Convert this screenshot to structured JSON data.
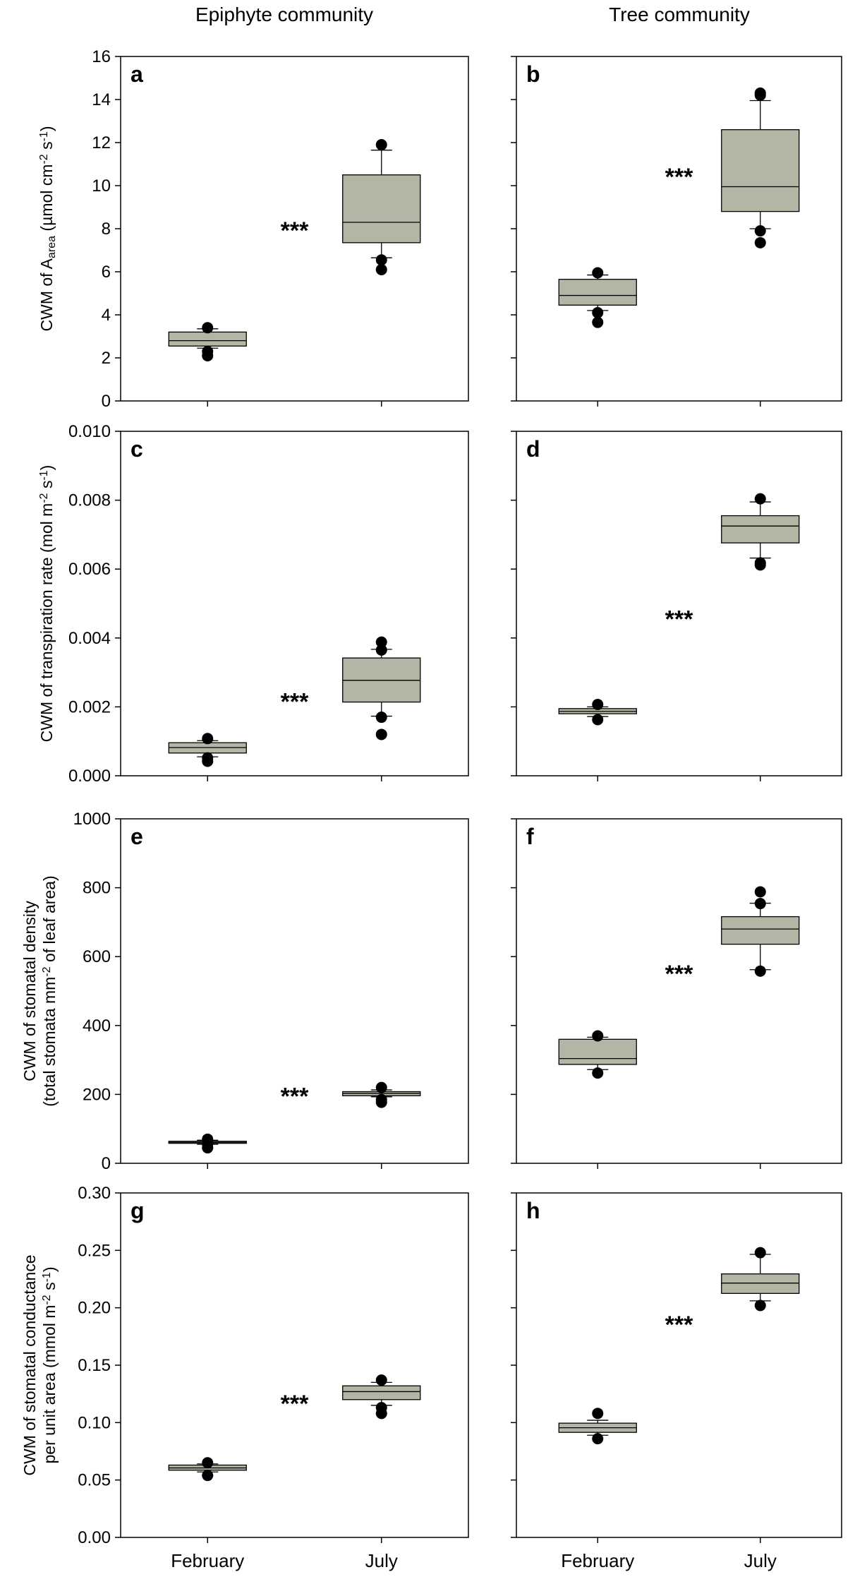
{
  "column_titles": [
    "Epiphyte community",
    "Tree community"
  ],
  "x_categories": [
    "February",
    "July"
  ],
  "colors": {
    "box_fill": "#b5b5a6",
    "stroke": "#000000",
    "outlier": "#000000"
  },
  "rows": [
    {
      "ylabel_lines": [
        [
          {
            "t": "CWM of A"
          },
          {
            "t": "area",
            "sub": true
          },
          {
            "t": " (µmol cm"
          },
          {
            "t": "-2",
            "sup": true
          },
          {
            "t": " s"
          },
          {
            "t": "-1",
            "sup": true
          },
          {
            "t": ")"
          }
        ]
      ],
      "ylim": [
        0,
        16
      ],
      "yticks": [
        "0",
        "2",
        "4",
        "6",
        "8",
        "10",
        "12",
        "14",
        "16"
      ],
      "ytick_values": [
        0,
        2,
        4,
        6,
        8,
        10,
        12,
        14,
        16
      ]
    },
    {
      "ylabel_lines": [
        [
          {
            "t": "CWM of transpiration rate (mol m"
          },
          {
            "t": "-2",
            "sup": true
          },
          {
            "t": " s"
          },
          {
            "t": "-1",
            "sup": true
          },
          {
            "t": ")"
          }
        ]
      ],
      "ylim": [
        0,
        0.01
      ],
      "yticks": [
        "0.000",
        "0.002",
        "0.004",
        "0.006",
        "0.008",
        "0.010"
      ],
      "ytick_values": [
        0,
        0.002,
        0.004,
        0.006,
        0.008,
        0.01
      ]
    },
    {
      "ylabel_lines": [
        [
          {
            "t": "CWM of stomatal density"
          }
        ],
        [
          {
            "t": "(total stomata mm"
          },
          {
            "t": "-2",
            "sup": true
          },
          {
            "t": " of leaf area)"
          }
        ]
      ],
      "ylim": [
        0,
        1000
      ],
      "yticks": [
        "0",
        "200",
        "400",
        "600",
        "800",
        "1000"
      ],
      "ytick_values": [
        0,
        200,
        400,
        600,
        800,
        1000
      ]
    },
    {
      "ylabel_lines": [
        [
          {
            "t": "CWM of stomatal conductance"
          }
        ],
        [
          {
            "t": "per unit area (mmol m"
          },
          {
            "t": "-2",
            "sup": true
          },
          {
            "t": " s"
          },
          {
            "t": "-1",
            "sup": true
          },
          {
            "t": ")"
          }
        ]
      ],
      "ylim": [
        0,
        0.3
      ],
      "yticks": [
        "0.00",
        "0.05",
        "0.10",
        "0.15",
        "0.20",
        "0.25",
        "0.30"
      ],
      "ytick_values": [
        0,
        0.05,
        0.1,
        0.15,
        0.2,
        0.25,
        0.3
      ]
    }
  ],
  "chart_data": [
    {
      "type": "box",
      "panel": "a",
      "title": "Epiphyte community",
      "categories": [
        "February",
        "July"
      ],
      "ylim": [
        0,
        16
      ],
      "significance": "***",
      "sig_at": [
        1.5,
        8.0
      ],
      "series": [
        {
          "name": "February",
          "whisker_low": 2.45,
          "q1": 2.55,
          "median": 2.8,
          "q3": 3.2,
          "whisker_high": 3.35,
          "outliers": [
            2.1,
            2.3,
            3.4
          ]
        },
        {
          "name": "July",
          "whisker_low": 6.65,
          "q1": 7.35,
          "median": 8.3,
          "q3": 10.5,
          "whisker_high": 11.65,
          "outliers": [
            6.1,
            6.55,
            11.9
          ]
        }
      ]
    },
    {
      "type": "box",
      "panel": "b",
      "title": "Tree community",
      "categories": [
        "February",
        "July"
      ],
      "ylim": [
        0,
        16
      ],
      "significance": "***",
      "sig_at": [
        1.5,
        10.5
      ],
      "series": [
        {
          "name": "February",
          "whisker_low": 4.2,
          "q1": 4.45,
          "median": 4.9,
          "q3": 5.65,
          "whisker_high": 5.85,
          "outliers": [
            3.65,
            4.1,
            5.95
          ]
        },
        {
          "name": "July",
          "whisker_low": 8.0,
          "q1": 8.8,
          "median": 9.95,
          "q3": 12.6,
          "whisker_high": 13.95,
          "outliers": [
            7.35,
            7.9,
            14.2,
            14.3
          ]
        }
      ]
    },
    {
      "type": "box",
      "panel": "c",
      "title": "Epiphyte community",
      "categories": [
        "February",
        "July"
      ],
      "ylim": [
        0,
        0.01
      ],
      "significance": "***",
      "sig_at": [
        1.5,
        0.0022
      ],
      "series": [
        {
          "name": "February",
          "whisker_low": 0.00055,
          "q1": 0.00066,
          "median": 0.00082,
          "q3": 0.00096,
          "whisker_high": 0.00102,
          "outliers": [
            0.00042,
            0.00052,
            0.00108
          ]
        },
        {
          "name": "July",
          "whisker_low": 0.00173,
          "q1": 0.00214,
          "median": 0.00277,
          "q3": 0.00342,
          "whisker_high": 0.00367,
          "outliers": [
            0.0012,
            0.0017,
            0.00365,
            0.00388
          ]
        }
      ]
    },
    {
      "type": "box",
      "panel": "d",
      "title": "Tree community",
      "categories": [
        "February",
        "July"
      ],
      "ylim": [
        0,
        0.01
      ],
      "significance": "***",
      "sig_at": [
        1.5,
        0.0046
      ],
      "series": [
        {
          "name": "February",
          "whisker_low": 0.00172,
          "q1": 0.0018,
          "median": 0.00187,
          "q3": 0.00195,
          "whisker_high": 0.002,
          "outliers": [
            0.00163,
            0.00207
          ]
        },
        {
          "name": "July",
          "whisker_low": 0.00632,
          "q1": 0.00676,
          "median": 0.00725,
          "q3": 0.00755,
          "whisker_high": 0.00795,
          "outliers": [
            0.00612,
            0.00618,
            0.00804
          ]
        }
      ]
    },
    {
      "type": "box",
      "panel": "e",
      "title": "Epiphyte community",
      "categories": [
        "February",
        "July"
      ],
      "ylim": [
        0,
        1000
      ],
      "significance": "***",
      "sig_at": [
        1.5,
        200
      ],
      "series": [
        {
          "name": "February",
          "whisker_low": 55,
          "q1": 58,
          "median": 61,
          "q3": 64,
          "whisker_high": 67,
          "outliers": [
            45,
            55,
            70
          ]
        },
        {
          "name": "July",
          "whisker_low": 193,
          "q1": 196,
          "median": 203,
          "q3": 208,
          "whisker_high": 213,
          "outliers": [
            177,
            185,
            220
          ]
        }
      ]
    },
    {
      "type": "box",
      "panel": "f",
      "title": "Tree community",
      "categories": [
        "February",
        "July"
      ],
      "ylim": [
        0,
        1000
      ],
      "significance": "***",
      "sig_at": [
        1.5,
        555
      ],
      "series": [
        {
          "name": "February",
          "whisker_low": 272,
          "q1": 287,
          "median": 304,
          "q3": 360,
          "whisker_high": 366,
          "outliers": [
            262,
            370
          ]
        },
        {
          "name": "July",
          "whisker_low": 562,
          "q1": 636,
          "median": 680,
          "q3": 716,
          "whisker_high": 755,
          "outliers": [
            558,
            754,
            788
          ]
        }
      ]
    },
    {
      "type": "box",
      "panel": "g",
      "title": "Epiphyte community",
      "categories": [
        "February",
        "July"
      ],
      "ylim": [
        0,
        0.3
      ],
      "significance": "***",
      "sig_at": [
        1.5,
        0.118
      ],
      "series": [
        {
          "name": "February",
          "whisker_low": 0.057,
          "q1": 0.0585,
          "median": 0.0605,
          "q3": 0.063,
          "whisker_high": 0.064,
          "outliers": [
            0.054,
            0.065
          ]
        },
        {
          "name": "July",
          "whisker_low": 0.115,
          "q1": 0.12,
          "median": 0.127,
          "q3": 0.132,
          "whisker_high": 0.135,
          "outliers": [
            0.108,
            0.113,
            0.137
          ]
        }
      ]
    },
    {
      "type": "box",
      "panel": "h",
      "title": "Tree community",
      "categories": [
        "February",
        "July"
      ],
      "ylim": [
        0,
        0.3
      ],
      "significance": "***",
      "sig_at": [
        1.5,
        0.187
      ],
      "series": [
        {
          "name": "February",
          "whisker_low": 0.089,
          "q1": 0.0915,
          "median": 0.0955,
          "q3": 0.0995,
          "whisker_high": 0.102,
          "outliers": [
            0.086,
            0.108
          ]
        },
        {
          "name": "July",
          "whisker_low": 0.206,
          "q1": 0.2125,
          "median": 0.2215,
          "q3": 0.2295,
          "whisker_high": 0.2465,
          "outliers": [
            0.202,
            0.248
          ]
        }
      ]
    }
  ]
}
